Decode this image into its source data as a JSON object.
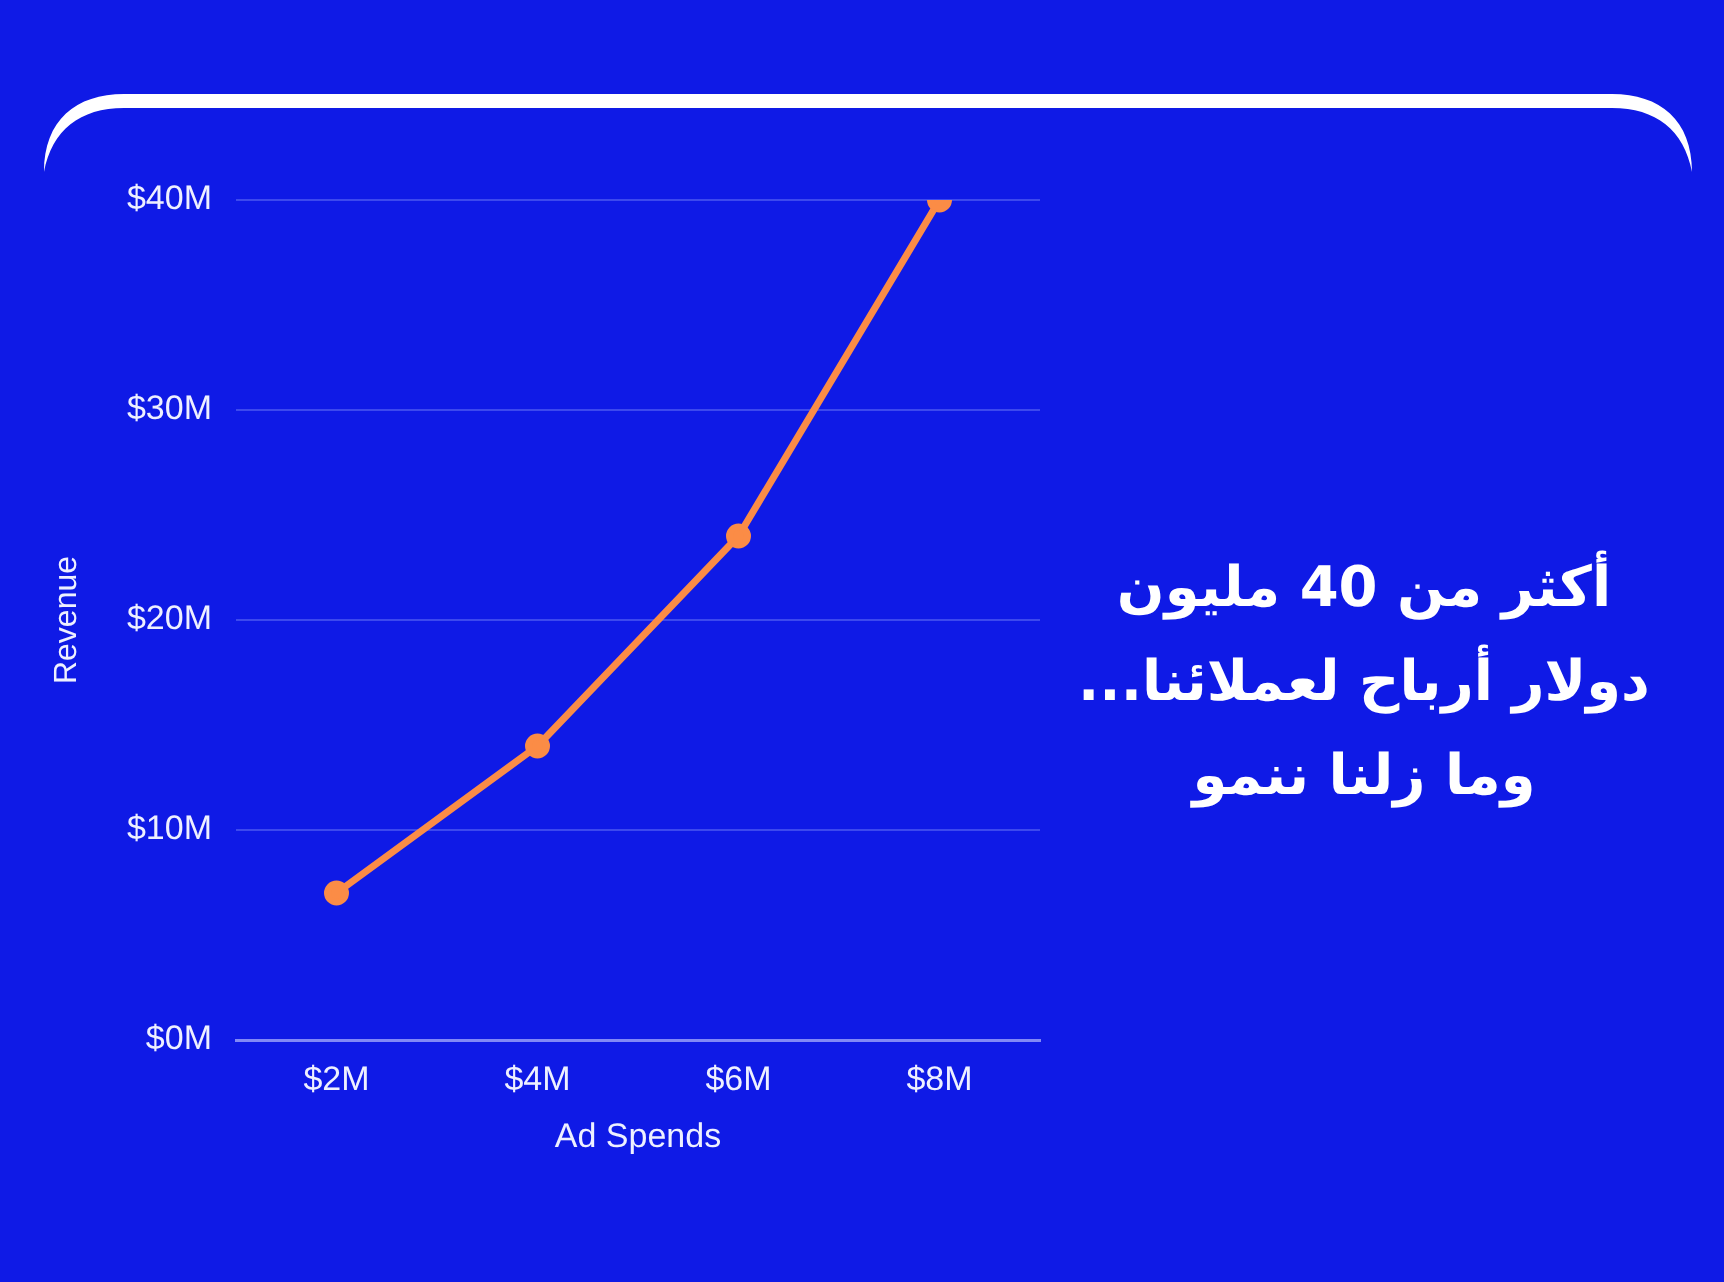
{
  "chart_data": {
    "type": "line",
    "categories": [
      "$2M",
      "$4M",
      "$6M",
      "$8M"
    ],
    "series": [
      {
        "color": "#fb8c46",
        "values": [
          7,
          14,
          24,
          40
        ]
      }
    ],
    "xlabel": "Ad Spends",
    "ylabel": "Revenue",
    "ylim": [
      0,
      40
    ],
    "yticks": [
      {
        "value": 0,
        "label": "$0M"
      },
      {
        "value": 10,
        "label": "$10M"
      },
      {
        "value": 20,
        "label": "$20M"
      },
      {
        "value": 30,
        "label": "$30M"
      },
      {
        "value": 40,
        "label": "$40M"
      }
    ],
    "grid": "y",
    "marker": "circle",
    "line_style": "solid",
    "annotations": [
      "أكثر من 40 مليون دولار أرباح لعملائنا... وما زلنا ننمو"
    ]
  }
}
